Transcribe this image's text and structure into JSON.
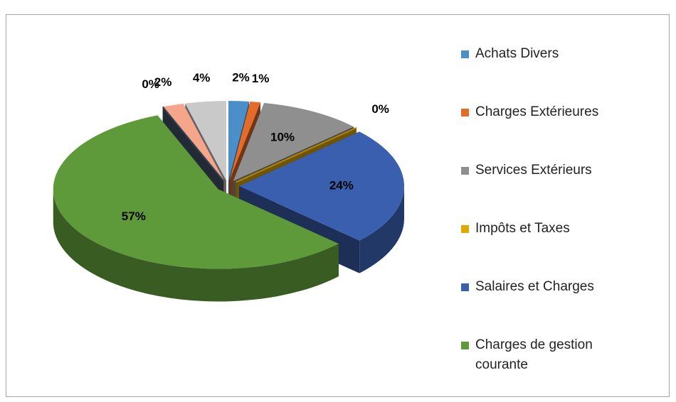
{
  "chart_data": {
    "type": "pie3d",
    "categories": [
      "Achats Divers",
      "Charges Extérieures",
      "Services Extérieurs",
      "Impôts et Taxes",
      "Salaires et Charges",
      "Charges de gestion courante",
      null,
      null,
      null
    ],
    "values": [
      2,
      1,
      10,
      0,
      24,
      57,
      0,
      2,
      4
    ],
    "value_labels": [
      "2%",
      "1%",
      "10%",
      "0%",
      "24%",
      "57%",
      "0%",
      "2%",
      "4%"
    ],
    "colors": [
      "#4a8fc9",
      "#e36c2a",
      "#8f8f8f",
      "#e0a800",
      "#3a5fae",
      "#5e9a3a",
      "#44546a",
      "#f4a58a",
      "#c9c9c9"
    ],
    "legend": "right"
  }
}
